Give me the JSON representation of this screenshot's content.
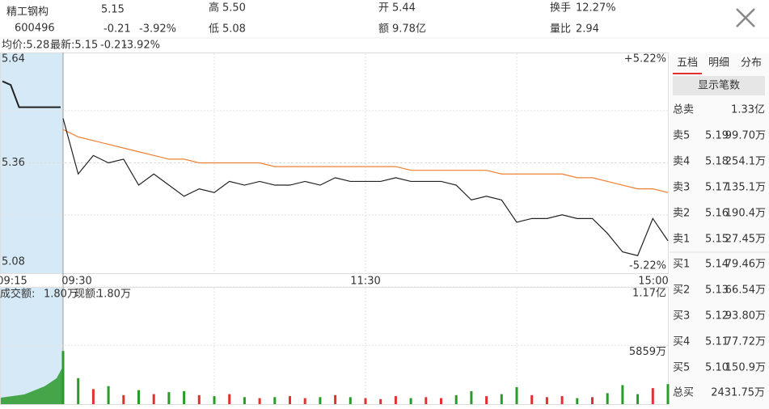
{
  "header": {
    "name": "精工钢构",
    "code": "600496",
    "price": "5.15",
    "change": "-0.21",
    "pct": "-3.92%",
    "fields": [
      {
        "label": "高",
        "value": "5.50"
      },
      {
        "label": "低",
        "value": "5.08"
      },
      {
        "label": "开",
        "value": "5.44"
      },
      {
        "label": "额",
        "value": "9.78亿"
      },
      {
        "label": "换手",
        "value": "12.27%"
      },
      {
        "label": "量比",
        "value": "2.94"
      }
    ]
  },
  "info": {
    "avg": "均价:5.28",
    "latest": "最新:5.15",
    "change": "-0.21",
    "pct": "-3.92%"
  },
  "chart_data": [
    {
      "type": "line",
      "ylim": [
        5.08,
        5.64
      ],
      "yticks": [
        5.08,
        5.36,
        5.64
      ],
      "upper_pct": "+5.22%",
      "lower_pct": "-5.22%",
      "time_labels": [
        "09:15",
        "09:30",
        "11:30",
        "15:00"
      ],
      "premarket": [
        5.58,
        5.57,
        5.51,
        5.51,
        5.51,
        5.51,
        5.51,
        5.51
      ],
      "series": [
        {
          "name": "最新",
          "color": "#222222",
          "values": [
            5.48,
            5.33,
            5.38,
            5.36,
            5.37,
            5.3,
            5.33,
            5.3,
            5.27,
            5.29,
            5.28,
            5.31,
            5.3,
            5.31,
            5.3,
            5.3,
            5.31,
            5.3,
            5.32,
            5.31,
            5.31,
            5.31,
            5.32,
            5.31,
            5.31,
            5.31,
            5.3,
            5.26,
            5.27,
            5.26,
            5.2,
            5.21,
            5.21,
            5.22,
            5.21,
            5.21,
            5.17,
            5.12,
            5.11,
            5.21,
            5.15
          ]
        },
        {
          "name": "均价",
          "color": "#f08030",
          "values": [
            5.45,
            5.43,
            5.42,
            5.41,
            5.4,
            5.39,
            5.38,
            5.37,
            5.37,
            5.36,
            5.36,
            5.36,
            5.36,
            5.36,
            5.35,
            5.35,
            5.35,
            5.35,
            5.35,
            5.35,
            5.35,
            5.35,
            5.35,
            5.34,
            5.34,
            5.34,
            5.34,
            5.34,
            5.34,
            5.33,
            5.33,
            5.33,
            5.33,
            5.33,
            5.32,
            5.32,
            5.31,
            5.3,
            5.29,
            5.29,
            5.28
          ]
        }
      ]
    },
    {
      "type": "bar",
      "title": "成交额:",
      "title_value": "1.80万",
      "subtitle": "现额:",
      "subtitle_value": "1.80万",
      "ylim": [
        0,
        11700
      ],
      "yticks": [
        {
          "value": 5859,
          "label": "5859万"
        },
        {
          "value": 11700,
          "label": "1.17亿"
        }
      ],
      "values": [
        5300,
        2600,
        1500,
        1800,
        900,
        1400,
        1000,
        1200,
        1300,
        900,
        800,
        1000,
        700,
        600,
        700,
        800,
        600,
        700,
        900,
        700,
        600,
        500,
        800,
        600,
        700,
        600,
        900,
        1300,
        800,
        1000,
        1700,
        900,
        700,
        800,
        600,
        700,
        1100,
        1900,
        1000,
        1600,
        2000
      ]
    }
  ],
  "panel": {
    "tabs": [
      "五档",
      "明细",
      "分布"
    ],
    "button": "显示笔数",
    "total_sell": {
      "label": "总卖",
      "value": "1.33亿"
    },
    "rows": [
      {
        "label": "卖5",
        "price": "5.19",
        "volume": "99.70万"
      },
      {
        "label": "卖4",
        "price": "5.18",
        "volume": "254.1万"
      },
      {
        "label": "卖3",
        "price": "5.17",
        "volume": "135.1万"
      },
      {
        "label": "卖2",
        "price": "5.16",
        "volume": "190.4万"
      },
      {
        "label": "卖1",
        "price": "5.15",
        "volume": "27.45万"
      },
      {
        "label": "买1",
        "price": "5.14",
        "volume": "79.46万"
      },
      {
        "label": "买2",
        "price": "5.13",
        "volume": "66.54万"
      },
      {
        "label": "买3",
        "price": "5.12",
        "volume": "93.80万"
      },
      {
        "label": "买4",
        "price": "5.11",
        "volume": "77.72万"
      },
      {
        "label": "买5",
        "price": "5.10",
        "volume": "150.9万"
      }
    ],
    "total_buy": {
      "label": "总买",
      "value": "2431.75万"
    }
  }
}
